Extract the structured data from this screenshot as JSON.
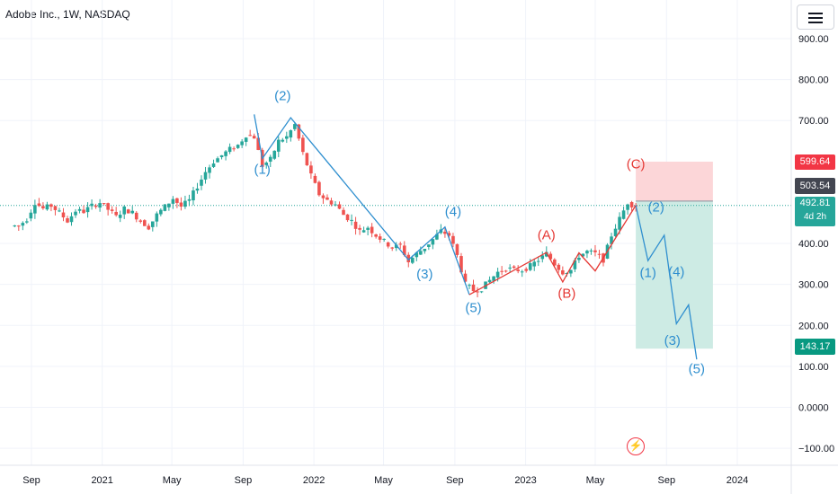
{
  "header": {
    "title": "Adobe Inc., 1W, NASDAQ"
  },
  "toolbar": {
    "menu_icon": "hamburger-menu-icon"
  },
  "markers": {
    "flash_icon": "lightning-icon"
  },
  "colors": {
    "up": "#26a69a",
    "down": "#ef5350",
    "blue_wave": "#2f8fcf",
    "red_wave": "#e53935",
    "stop_zone": "#fcd6d8",
    "target_zone": "#cdebe4"
  },
  "price_chips": [
    {
      "label": "599.64",
      "color": "#f23645"
    },
    {
      "label": "503.54",
      "color": "#434651"
    },
    {
      "label": "492.81",
      "color": "#26a69a",
      "sub": "4d 2h"
    },
    {
      "label": "143.17",
      "color": "#089981"
    }
  ],
  "chart_data": {
    "type": "candlestick",
    "title": "Adobe Inc., 1W, NASDAQ",
    "xlabel": "",
    "ylabel": "",
    "ylim": [
      -130,
      990
    ],
    "y_ticks": [
      {
        "label": "900.00",
        "value": 900
      },
      {
        "label": "800.00",
        "value": 800
      },
      {
        "label": "700.00",
        "value": 700
      },
      {
        "label": "400.00",
        "value": 400
      },
      {
        "label": "300.00",
        "value": 300
      },
      {
        "label": "200.00",
        "value": 200
      },
      {
        "label": "100.00",
        "value": 100
      },
      {
        "label": "0.0000",
        "value": 0
      },
      {
        "label": "−100.00",
        "value": -100
      }
    ],
    "x_ticks": [
      {
        "label": "Sep",
        "date": "2020-09-01"
      },
      {
        "label": "2021",
        "date": "2021-01-01"
      },
      {
        "label": "May",
        "date": "2021-05-01"
      },
      {
        "label": "Sep",
        "date": "2021-09-01"
      },
      {
        "label": "2022",
        "date": "2022-01-01"
      },
      {
        "label": "May",
        "date": "2022-05-01"
      },
      {
        "label": "Sep",
        "date": "2022-09-01"
      },
      {
        "label": "2023",
        "date": "2023-01-01"
      },
      {
        "label": "May",
        "date": "2023-05-01"
      },
      {
        "label": "Sep",
        "date": "2023-09-01"
      },
      {
        "label": "2024",
        "date": "2024-01-01"
      }
    ],
    "weekly_closes": [
      {
        "date": "2020-08-03",
        "close": 443
      },
      {
        "date": "2020-08-17",
        "close": 460
      },
      {
        "date": "2020-08-31",
        "close": 500
      },
      {
        "date": "2020-09-14",
        "close": 485
      },
      {
        "date": "2020-09-28",
        "close": 492
      },
      {
        "date": "2020-10-12",
        "close": 475
      },
      {
        "date": "2020-10-26",
        "close": 455
      },
      {
        "date": "2020-11-09",
        "close": 480
      },
      {
        "date": "2020-11-23",
        "close": 478
      },
      {
        "date": "2020-12-07",
        "close": 492
      },
      {
        "date": "2020-12-21",
        "close": 500
      },
      {
        "date": "2021-01-04",
        "close": 483
      },
      {
        "date": "2021-01-18",
        "close": 465
      },
      {
        "date": "2021-02-01",
        "close": 485
      },
      {
        "date": "2021-02-15",
        "close": 475
      },
      {
        "date": "2021-03-01",
        "close": 455
      },
      {
        "date": "2021-03-15",
        "close": 440
      },
      {
        "date": "2021-03-29",
        "close": 470
      },
      {
        "date": "2021-04-12",
        "close": 490
      },
      {
        "date": "2021-04-26",
        "close": 510
      },
      {
        "date": "2021-05-10",
        "close": 490
      },
      {
        "date": "2021-05-24",
        "close": 505
      },
      {
        "date": "2021-06-07",
        "close": 540
      },
      {
        "date": "2021-06-21",
        "close": 575
      },
      {
        "date": "2021-07-05",
        "close": 600
      },
      {
        "date": "2021-07-19",
        "close": 615
      },
      {
        "date": "2021-08-02",
        "close": 630
      },
      {
        "date": "2021-08-16",
        "close": 640
      },
      {
        "date": "2021-08-30",
        "close": 665
      },
      {
        "date": "2021-09-13",
        "close": 660
      },
      {
        "date": "2021-09-27",
        "close": 590
      },
      {
        "date": "2021-10-11",
        "close": 605
      },
      {
        "date": "2021-10-25",
        "close": 650
      },
      {
        "date": "2021-11-08",
        "close": 660
      },
      {
        "date": "2021-11-22",
        "close": 690
      },
      {
        "date": "2021-12-06",
        "close": 620
      },
      {
        "date": "2021-12-20",
        "close": 565
      },
      {
        "date": "2022-01-03",
        "close": 520
      },
      {
        "date": "2022-01-17",
        "close": 505
      },
      {
        "date": "2022-01-31",
        "close": 495
      },
      {
        "date": "2022-02-14",
        "close": 470
      },
      {
        "date": "2022-02-28",
        "close": 455
      },
      {
        "date": "2022-03-14",
        "close": 430
      },
      {
        "date": "2022-03-28",
        "close": 440
      },
      {
        "date": "2022-04-11",
        "close": 420
      },
      {
        "date": "2022-04-25",
        "close": 405
      },
      {
        "date": "2022-05-09",
        "close": 390
      },
      {
        "date": "2022-05-23",
        "close": 395
      },
      {
        "date": "2022-06-06",
        "close": 355
      },
      {
        "date": "2022-06-20",
        "close": 375
      },
      {
        "date": "2022-07-04",
        "close": 390
      },
      {
        "date": "2022-07-18",
        "close": 410
      },
      {
        "date": "2022-08-01",
        "close": 430
      },
      {
        "date": "2022-08-15",
        "close": 420
      },
      {
        "date": "2022-08-29",
        "close": 370
      },
      {
        "date": "2022-09-12",
        "close": 300
      },
      {
        "date": "2022-09-26",
        "close": 285
      },
      {
        "date": "2022-10-10",
        "close": 290
      },
      {
        "date": "2022-10-24",
        "close": 310
      },
      {
        "date": "2022-11-07",
        "close": 330
      },
      {
        "date": "2022-11-21",
        "close": 340
      },
      {
        "date": "2022-12-05",
        "close": 335
      },
      {
        "date": "2022-12-19",
        "close": 335
      },
      {
        "date": "2023-01-02",
        "close": 345
      },
      {
        "date": "2023-01-16",
        "close": 360
      },
      {
        "date": "2023-01-30",
        "close": 375
      },
      {
        "date": "2023-02-13",
        "close": 350
      },
      {
        "date": "2023-02-27",
        "close": 330
      },
      {
        "date": "2023-03-13",
        "close": 335
      },
      {
        "date": "2023-03-27",
        "close": 370
      },
      {
        "date": "2023-04-10",
        "close": 380
      },
      {
        "date": "2023-04-24",
        "close": 375
      },
      {
        "date": "2023-05-08",
        "close": 360
      },
      {
        "date": "2023-05-22",
        "close": 420
      },
      {
        "date": "2023-06-05",
        "close": 460
      },
      {
        "date": "2023-06-19",
        "close": 500
      },
      {
        "date": "2023-07-03",
        "close": 495
      },
      {
        "date": "2023-07-10",
        "close": 493
      }
    ],
    "last_price": 492.81,
    "position": {
      "stop": 599.64,
      "entry": 503.54,
      "target": 143.17,
      "start_date": "2023-07-10",
      "end_date": "2023-11-20"
    },
    "wave_paths": [
      {
        "color": "blue",
        "points": [
          [
            "2021-09-20",
            715
          ],
          [
            "2021-10-04",
            607
          ],
          [
            "2021-11-22",
            707
          ],
          [
            "2022-06-13",
            360
          ],
          [
            "2022-08-15",
            440
          ],
          [
            "2022-09-26",
            275
          ]
        ]
      },
      {
        "color": "red",
        "points": [
          [
            "2022-09-26",
            275
          ],
          [
            "2023-02-06",
            378
          ],
          [
            "2023-03-06",
            306
          ],
          [
            "2023-04-03",
            377
          ],
          [
            "2023-05-01",
            333
          ],
          [
            "2023-07-10",
            493
          ]
        ]
      },
      {
        "color": "blue",
        "points": [
          [
            "2023-07-10",
            493
          ],
          [
            "2023-07-31",
            358
          ],
          [
            "2023-08-28",
            420
          ],
          [
            "2023-09-18",
            204
          ],
          [
            "2023-10-09",
            250
          ],
          [
            "2023-10-23",
            117
          ]
        ]
      }
    ],
    "wave_labels": [
      {
        "text": "(2)",
        "date": "2021-11-08",
        "price": 750,
        "color": "blue"
      },
      {
        "text": "(1)",
        "date": "2021-10-04",
        "price": 570,
        "color": "blue"
      },
      {
        "text": "(3)",
        "date": "2022-07-11",
        "price": 315,
        "color": "blue"
      },
      {
        "text": "(4)",
        "date": "2022-08-29",
        "price": 467,
        "color": "blue"
      },
      {
        "text": "(5)",
        "date": "2022-10-03",
        "price": 232,
        "color": "blue"
      },
      {
        "text": "(A)",
        "date": "2023-02-06",
        "price": 410,
        "color": "red"
      },
      {
        "text": "(B)",
        "date": "2023-03-13",
        "price": 267,
        "color": "red"
      },
      {
        "text": "(C)",
        "date": "2023-07-10",
        "price": 583,
        "color": "red"
      },
      {
        "text": "(2)",
        "date": "2023-08-14",
        "price": 478,
        "color": "blue"
      },
      {
        "text": "(1)",
        "date": "2023-07-31",
        "price": 318,
        "color": "blue"
      },
      {
        "text": "(4)",
        "date": "2023-09-18",
        "price": 320,
        "color": "blue"
      },
      {
        "text": "(3)",
        "date": "2023-09-11",
        "price": 152,
        "color": "blue"
      },
      {
        "text": "(5)",
        "date": "2023-10-23",
        "price": 83,
        "color": "blue"
      }
    ]
  }
}
